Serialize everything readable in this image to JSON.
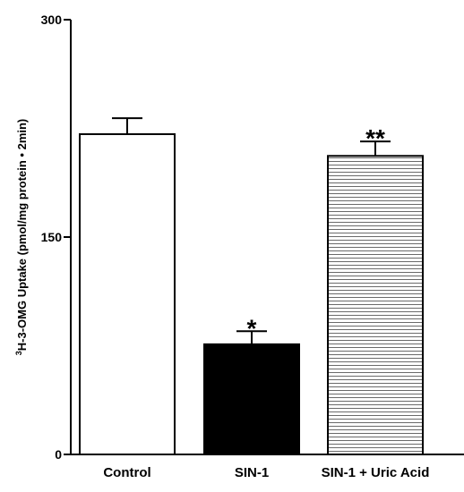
{
  "chart_data": {
    "type": "bar",
    "title": "",
    "xlabel": "",
    "ylabel": "H-3-OMG Uptake (pmol/mg protein • 2min)",
    "ylabel_superscript": "3",
    "ylim": [
      0,
      300
    ],
    "yticks": [
      "0",
      "150",
      "300"
    ],
    "categories": [
      "Control",
      "SIN-1",
      "SIN-1 + Uric Acid"
    ],
    "values": [
      221,
      76,
      206
    ],
    "errors": [
      11,
      9,
      10
    ],
    "significance": [
      "",
      "*",
      "**"
    ],
    "fills": [
      "white",
      "black",
      "horizontal-hatch"
    ],
    "colors": {
      "axis": "#000000",
      "bar_edge": "#000000",
      "solid_fill": "#000000",
      "open_fill": "#ffffff"
    },
    "grid": false,
    "legend": "none"
  }
}
